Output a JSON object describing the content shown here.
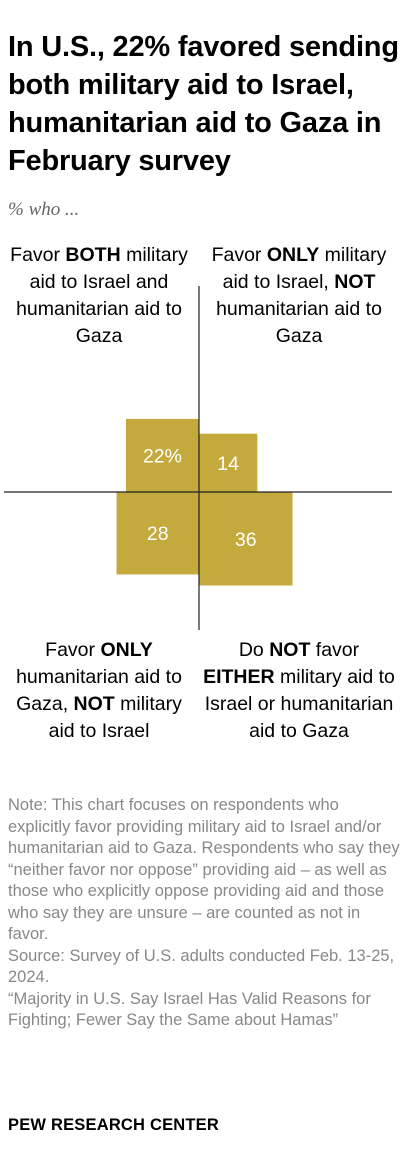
{
  "title": "In U.S., 22% favored sending both military aid to Israel, humanitarian aid to Gaza in February survey",
  "subtitle": "% who ...",
  "quadrant_labels": {
    "top_left": {
      "pre": "Favor ",
      "b1": "BOTH",
      "mid": " military aid to Israel and humanitarian aid to Gaza",
      "b2": "",
      "post": ""
    },
    "top_right": {
      "pre": "Favor ",
      "b1": "ONLY",
      "mid": " military aid to Israel, ",
      "b2": "NOT",
      "post": " humanitarian aid to Gaza"
    },
    "bottom_left": {
      "pre": "Favor ",
      "b1": "ONLY",
      "mid": " humanitarian aid to Gaza, ",
      "b2": "NOT",
      "post": " military aid to Israel"
    },
    "bottom_right": {
      "pre": "Do ",
      "b1": "NOT",
      "mid": " favor ",
      "b2": "EITHER",
      "post": " military aid to Israel or humanitarian aid to Gaza"
    }
  },
  "chart_data": {
    "type": "area",
    "categories": [
      "Favor BOTH",
      "Favor ONLY military aid to Israel",
      "Favor ONLY humanitarian aid to Gaza",
      "Do NOT favor EITHER"
    ],
    "values": [
      22,
      14,
      28,
      36
    ],
    "value_labels": [
      "22%",
      "14",
      "28",
      "36"
    ],
    "fill_color": "#c4a93c",
    "axis_color": "#222222"
  },
  "notes": [
    "Note: This chart focuses on respondents who explicitly favor providing military aid to Israel and/or humanitarian aid to Gaza. Respondents who say they “neither favor nor oppose” providing aid – as well as those who explicitly oppose providing aid and those who say they are unsure – are counted as not in favor.",
    "Source: Survey of U.S. adults conducted Feb. 13-25, 2024.",
    "“Majority in U.S. Say Israel Has Valid Reasons for Fighting; Fewer Say the Same about Hamas”"
  ],
  "brand": "PEW RESEARCH CENTER"
}
